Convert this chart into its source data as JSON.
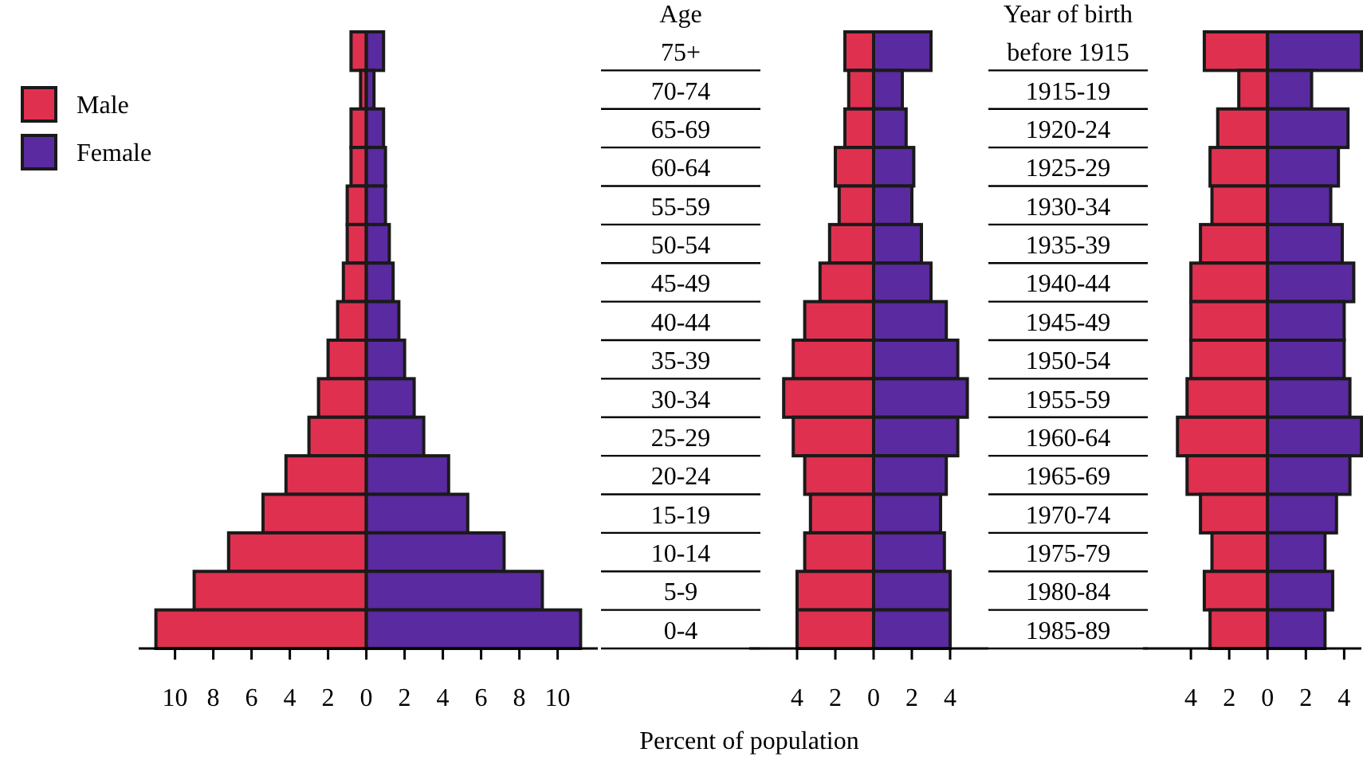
{
  "chart_data": [
    {
      "type": "bar",
      "orientation": "horizontal",
      "stacked": true,
      "legend": "left",
      "ylabel": "Age",
      "categories": [
        "75+",
        "70-74",
        "65-69",
        "60-64",
        "55-59",
        "50-54",
        "45-49",
        "40-44",
        "35-39",
        "30-34",
        "25-29",
        "20-24",
        "15-19",
        "10-14",
        "5-9",
        "0-4"
      ],
      "xlim": [
        -11.9,
        12.1
      ],
      "xticks": [
        {
          "value": -10,
          "label": "10"
        },
        {
          "value": -8,
          "label": "8"
        },
        {
          "value": -6,
          "label": "6"
        },
        {
          "value": -4,
          "label": "4"
        },
        {
          "value": -2,
          "label": "2"
        },
        0,
        2,
        4,
        6,
        8,
        10
      ],
      "series": [
        {
          "name": "Male",
          "color": "#e0304f",
          "values": [
            -0.8,
            -0.3,
            -0.8,
            -0.8,
            -1.0,
            -1.0,
            -1.2,
            -1.5,
            -2.0,
            -2.5,
            -3.0,
            -4.2,
            -5.4,
            -7.2,
            -9.0,
            -11.0
          ]
        },
        {
          "name": "Female",
          "color": "#5a2aa0",
          "values": [
            0.9,
            0.4,
            0.9,
            1.0,
            1.0,
            1.2,
            1.4,
            1.7,
            2.0,
            2.5,
            3.0,
            4.3,
            5.3,
            7.2,
            9.2,
            11.2
          ]
        }
      ]
    },
    {
      "type": "bar",
      "orientation": "horizontal",
      "stacked": true,
      "ylabel": "Year of birth",
      "xlabel": "Percent of population",
      "categories": [
        "before 1915",
        "1915-19",
        "1920-24",
        "1925-29",
        "1930-34",
        "1935-39",
        "1940-44",
        "1945-49",
        "1950-54",
        "1955-59",
        "1960-64",
        "1965-69",
        "1970-74",
        "1975-79",
        "1980-84",
        "1985-89"
      ],
      "xlim": [
        -6.5,
        6
      ],
      "xticks": [
        {
          "value": -4,
          "label": "4"
        },
        {
          "value": -2,
          "label": "2"
        },
        0,
        2,
        4
      ],
      "series": [
        {
          "color": "#e0304f",
          "values": [
            -1.5,
            -1.3,
            -1.5,
            -2.0,
            -1.8,
            -2.3,
            -2.8,
            -3.6,
            -4.2,
            -4.7,
            -4.2,
            -3.6,
            -3.3,
            -3.6,
            -4.0,
            -4.0
          ]
        },
        {
          "color": "#5a2aa0",
          "values": [
            3.0,
            1.5,
            1.7,
            2.1,
            2.0,
            2.5,
            3.0,
            3.8,
            4.4,
            4.9,
            4.4,
            3.8,
            3.5,
            3.7,
            4.0,
            4.0
          ]
        }
      ]
    },
    {
      "type": "bar",
      "orientation": "horizontal",
      "stacked": true,
      "tick_labels": "x",
      "categories": [
        null,
        null,
        null,
        null,
        null,
        null,
        null,
        null,
        null,
        null,
        null,
        null,
        null,
        null,
        null,
        null
      ],
      "xlim": [
        -6.5,
        4.9
      ],
      "xticks": [
        {
          "value": -4,
          "label": "4"
        },
        {
          "value": -2,
          "label": "2"
        },
        0,
        2,
        4
      ],
      "series": [
        {
          "color": "#e0304f",
          "values": [
            -3.3,
            -1.5,
            -2.6,
            -3.0,
            -2.9,
            -3.5,
            -4.0,
            -4.0,
            -4.0,
            -4.2,
            -4.7,
            -4.2,
            -3.5,
            -2.9,
            -3.3,
            -3.0
          ]
        },
        {
          "color": "#5a2aa0",
          "values": [
            4.9,
            2.3,
            4.2,
            3.7,
            3.3,
            3.9,
            4.5,
            4.0,
            4.0,
            4.3,
            4.9,
            4.3,
            3.6,
            3.0,
            3.4,
            3.0
          ]
        }
      ]
    }
  ]
}
